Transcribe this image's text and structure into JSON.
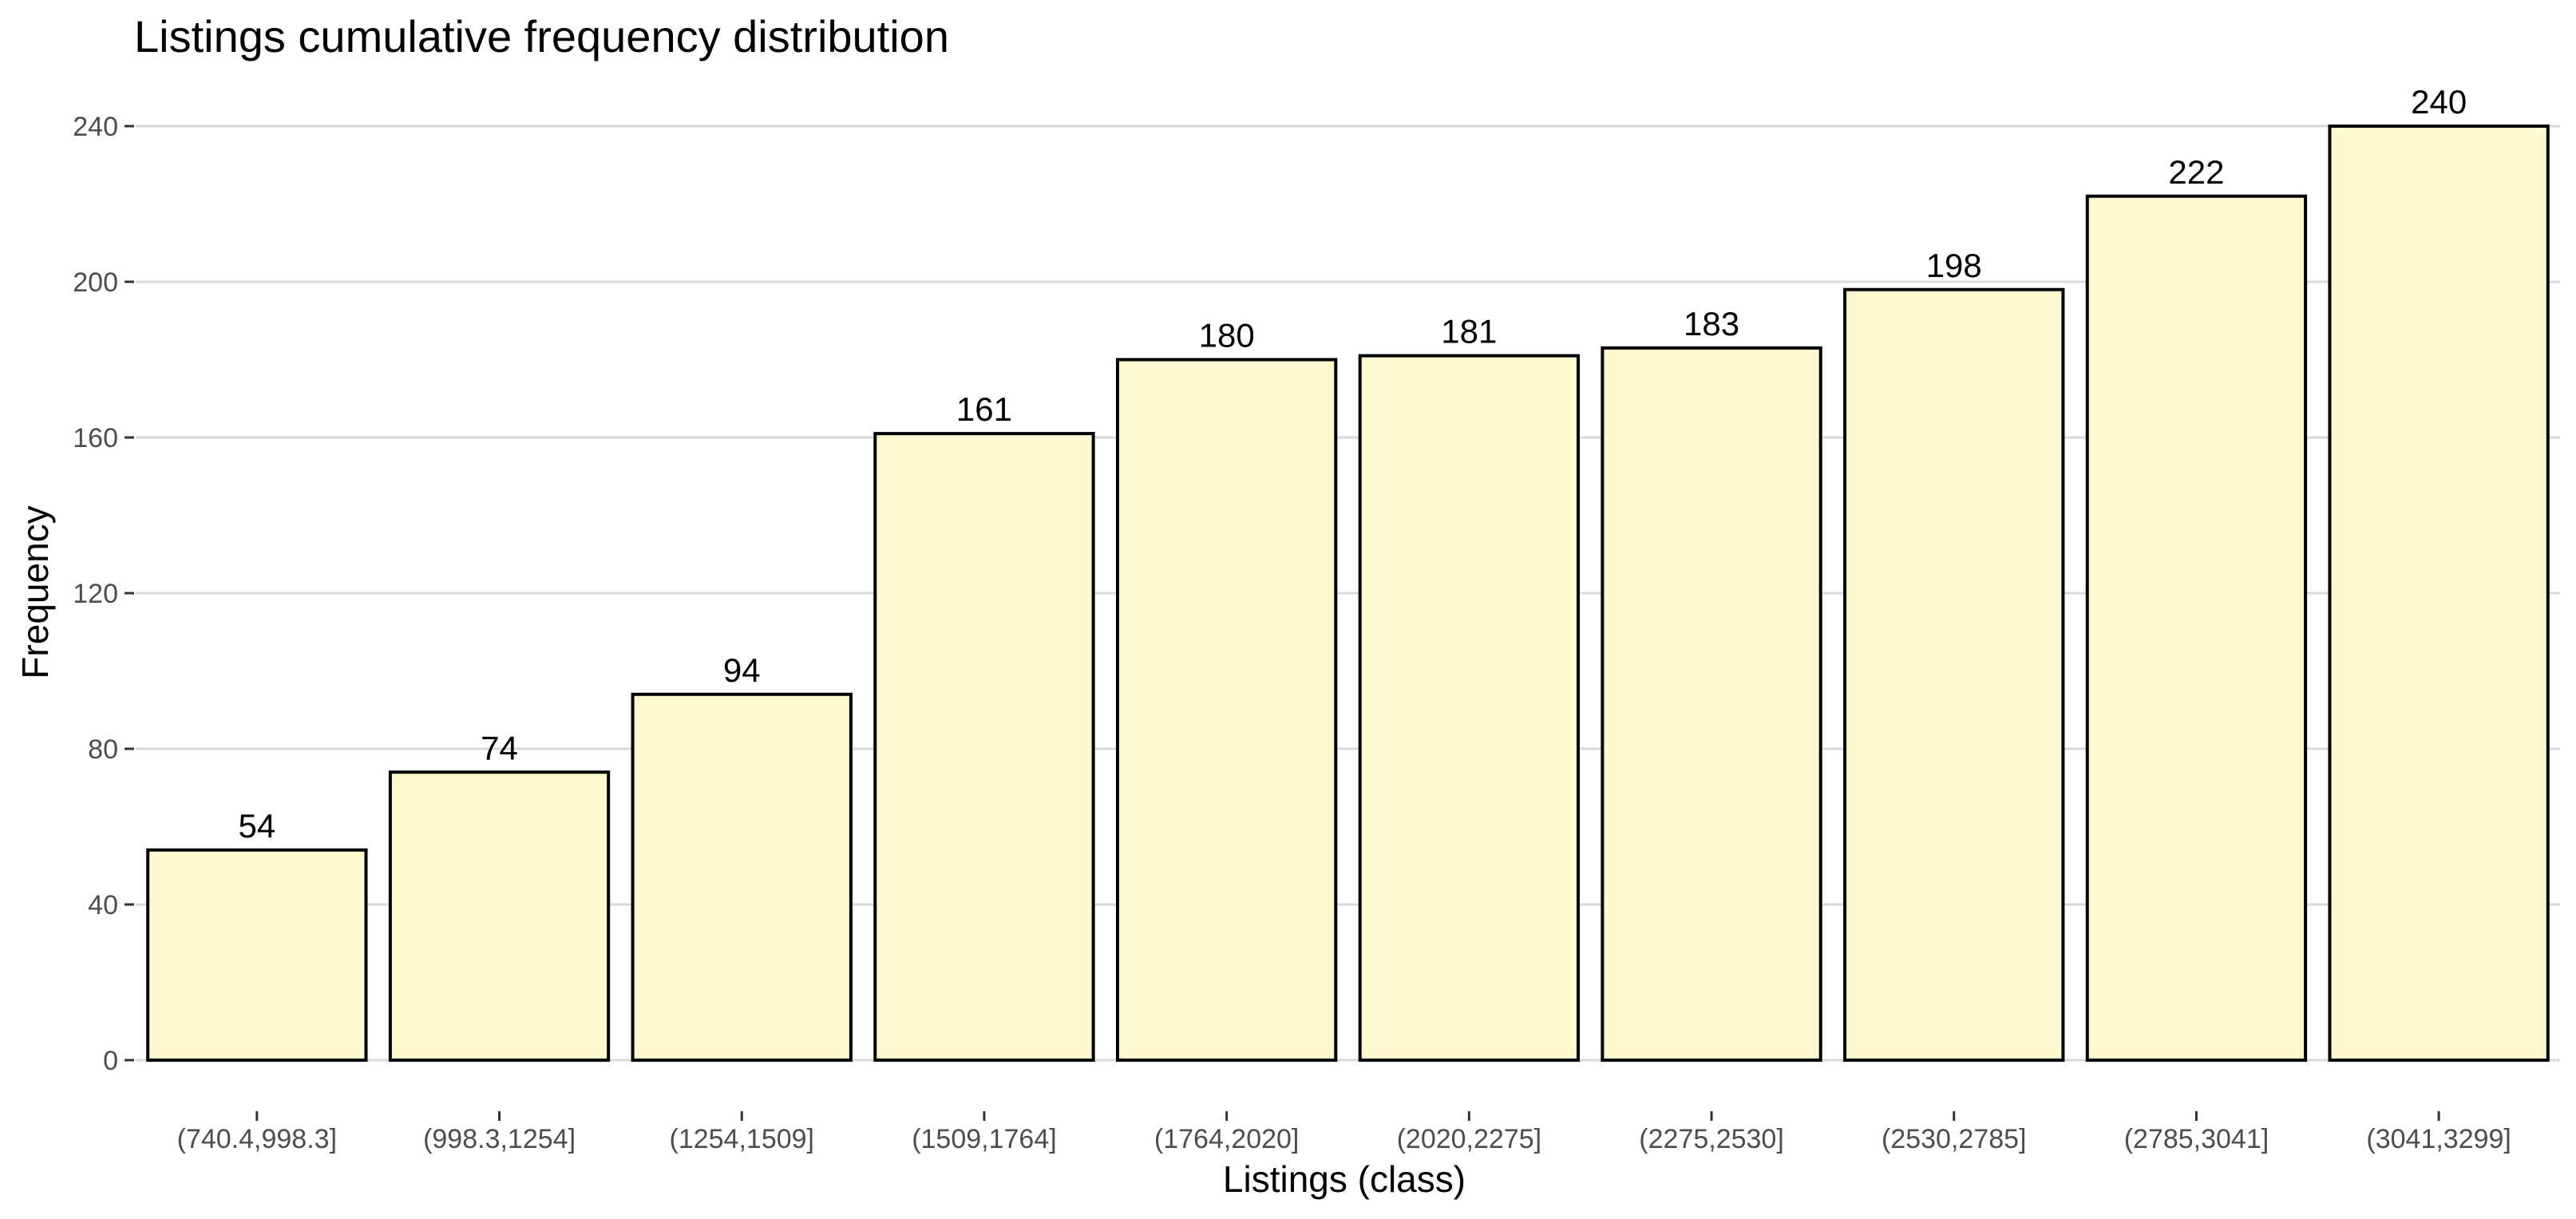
{
  "chart_data": {
    "type": "bar",
    "title": "Listings cumulative frequency distribution",
    "xlabel": "Listings (class)",
    "ylabel": "Frequency",
    "categories": [
      "(740.4,998.3]",
      "(998.3,1254]",
      "(1254,1509]",
      "(1509,1764]",
      "(1764,2020]",
      "(2020,2275]",
      "(2275,2530]",
      "(2530,2785]",
      "(2785,3041]",
      "(3041,3299]"
    ],
    "values": [
      54,
      74,
      94,
      161,
      180,
      181,
      183,
      198,
      222,
      240
    ],
    "ylim": [
      0,
      240
    ],
    "yticks": [
      "0",
      "40",
      "80",
      "120",
      "160",
      "200",
      "240"
    ],
    "grid": true,
    "legend": "none",
    "colors": {
      "bar_fill": "#fff9d0",
      "bar_stroke": "#000000",
      "grid": "#d9d9d9"
    }
  }
}
